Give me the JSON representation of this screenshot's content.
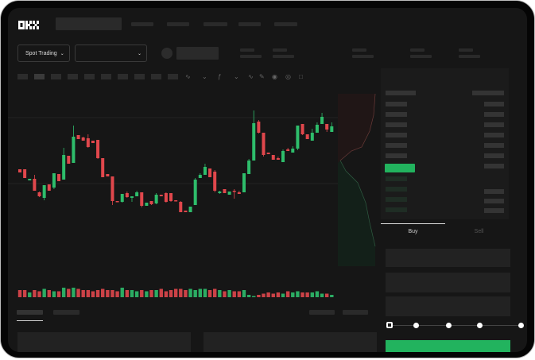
{
  "header": {
    "logo": "OKX"
  },
  "market_bar": {
    "mode_dropdown": "Spot Trading",
    "pair_dropdown": ""
  },
  "trade_panel": {
    "tabs": [
      "Buy",
      "Sell"
    ],
    "active_tab": "Buy",
    "slider_percent": 0,
    "submit_color": "#22b35e"
  },
  "colors": {
    "up": "#2ebd6b",
    "down": "#e0474c",
    "background": "#161616",
    "accent": "#22b35e"
  },
  "chart_data": {
    "type": "candlestick",
    "title": "",
    "xlabel": "",
    "ylabel": "",
    "ohlc": [
      [
        97,
        93,
        97,
        93
      ],
      [
        97,
        86,
        97,
        86
      ],
      [
        83,
        85,
        85,
        83
      ],
      [
        85,
        70,
        90,
        70
      ],
      [
        68,
        63,
        69,
        62
      ],
      [
        61,
        77,
        77,
        58
      ],
      [
        78,
        70,
        78,
        70
      ],
      [
        74,
        92,
        92,
        72
      ],
      [
        91,
        82,
        91,
        82
      ],
      [
        84,
        115,
        124,
        84
      ],
      [
        114,
        104,
        114,
        104
      ],
      [
        105,
        138,
        152,
        105
      ],
      [
        140,
        135,
        140,
        135
      ],
      [
        137,
        133,
        138,
        133
      ],
      [
        136,
        125,
        141,
        124
      ],
      [
        133,
        130,
        133,
        130
      ],
      [
        134,
        111,
        134,
        110
      ],
      [
        111,
        87,
        111,
        87
      ],
      [
        91,
        88,
        91,
        88
      ],
      [
        88,
        57,
        88,
        52
      ],
      [
        57,
        56,
        57,
        56
      ],
      [
        56,
        66,
        66,
        55
      ],
      [
        67,
        62,
        69,
        61
      ],
      [
        61,
        63,
        63,
        56
      ],
      [
        63,
        68,
        70,
        63
      ],
      [
        68,
        51,
        68,
        49
      ],
      [
        51,
        55,
        55,
        51
      ],
      [
        57,
        53,
        57,
        52
      ],
      [
        54,
        65,
        67,
        53
      ],
      [
        65,
        63,
        65,
        63
      ],
      [
        67,
        56,
        68,
        55
      ],
      [
        67,
        57,
        67,
        56
      ],
      [
        58,
        57,
        58,
        57
      ],
      [
        56,
        43,
        57,
        43
      ],
      [
        45,
        43,
        45,
        43
      ],
      [
        43,
        50,
        50,
        43
      ],
      [
        52,
        84,
        86,
        52
      ],
      [
        86,
        90,
        92,
        86
      ],
      [
        90,
        100,
        104,
        90
      ],
      [
        98,
        87,
        98,
        87
      ],
      [
        94,
        70,
        96,
        68
      ],
      [
        67,
        69,
        70,
        66
      ],
      [
        72,
        67,
        72,
        67
      ],
      [
        65,
        69,
        69,
        65
      ],
      [
        70,
        69,
        72,
        60
      ],
      [
        68,
        66,
        70,
        66
      ],
      [
        68,
        92,
        92,
        68
      ],
      [
        91,
        108,
        110,
        91
      ],
      [
        108,
        155,
        171,
        108
      ],
      [
        157,
        143,
        159,
        142
      ],
      [
        143,
        115,
        143,
        113
      ],
      [
        118,
        116,
        118,
        116
      ],
      [
        115,
        109,
        115,
        109
      ],
      [
        111,
        109,
        113,
        109
      ],
      [
        106,
        120,
        122,
        106
      ],
      [
        122,
        120,
        124,
        120
      ],
      [
        118,
        123,
        126,
        118
      ],
      [
        123,
        152,
        152,
        121
      ],
      [
        154,
        141,
        154,
        140
      ],
      [
        141,
        135,
        141,
        135
      ],
      [
        133,
        143,
        148,
        133
      ],
      [
        143,
        153,
        156,
        143
      ],
      [
        154,
        163,
        168,
        154
      ],
      [
        154,
        147,
        154,
        144
      ],
      [
        144,
        151,
        156,
        144
      ]
    ],
    "volume": [
      6,
      6,
      4,
      6,
      5,
      7,
      6,
      5,
      5,
      8,
      7,
      8,
      7,
      6,
      6,
      5,
      6,
      7,
      6,
      6,
      5,
      8,
      6,
      6,
      5,
      6,
      5,
      6,
      6,
      7,
      5,
      6,
      7,
      7,
      6,
      7,
      6,
      7,
      7,
      6,
      7,
      6,
      5,
      6,
      5,
      5,
      6,
      2,
      1,
      2,
      3,
      4,
      3,
      4,
      3,
      5,
      4,
      5,
      4,
      4,
      4,
      5,
      3,
      3,
      2
    ],
    "grid": true
  }
}
